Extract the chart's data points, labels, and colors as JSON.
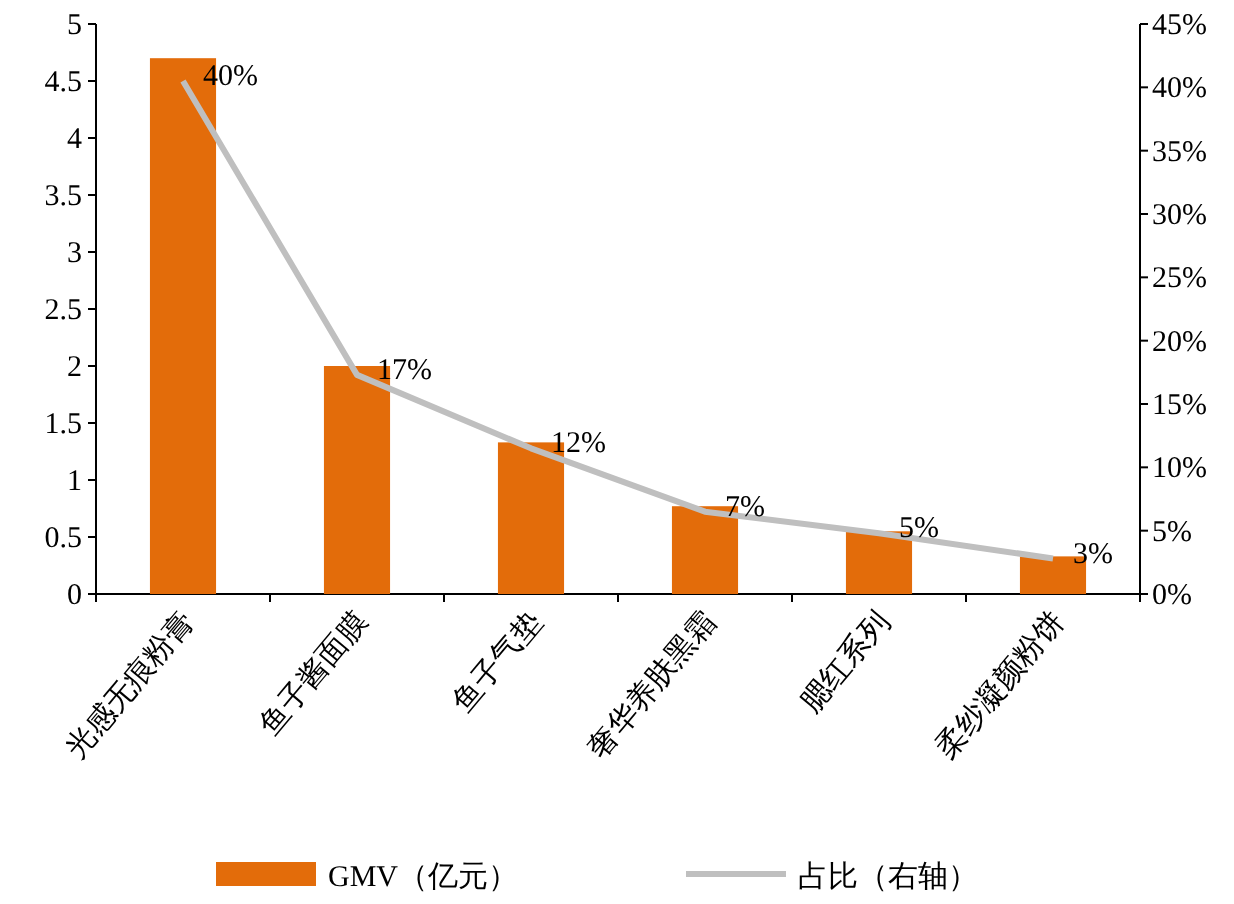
{
  "chart_data": {
    "type": "bar",
    "categories": [
      "光感无痕粉膏",
      "鱼子酱面膜",
      "鱼子气垫",
      "奢华养肤黑霜",
      "腮红系列",
      "柔纱凝颜粉饼"
    ],
    "series": [
      {
        "name": "GMV（亿元）",
        "color": "#e36c0a",
        "values": [
          4.7,
          2.0,
          1.33,
          0.77,
          0.55,
          0.33
        ]
      },
      {
        "name": "占比（右轴）",
        "type": "line",
        "axis": "y2",
        "color": "#bfbfbf",
        "values": [
          40.5,
          17.3,
          11.5,
          6.5,
          4.8,
          2.8
        ],
        "value_labels": [
          "40%",
          "17%",
          "12%",
          "7%",
          "5%",
          "3%"
        ]
      }
    ],
    "ylim": [
      0,
      5
    ],
    "yticks": [
      0,
      0.5,
      1,
      1.5,
      2,
      2.5,
      3,
      3.5,
      4,
      4.5,
      5
    ],
    "y2lim": [
      0,
      45
    ],
    "y2ticks": [
      {
        "value": 0,
        "label": "0%"
      },
      {
        "value": 5,
        "label": "5%"
      },
      {
        "value": 10,
        "label": "10%"
      },
      {
        "value": 15,
        "label": "15%"
      },
      {
        "value": 20,
        "label": "20%"
      },
      {
        "value": 25,
        "label": "25%"
      },
      {
        "value": 30,
        "label": "30%"
      },
      {
        "value": 35,
        "label": "35%"
      },
      {
        "value": 40,
        "label": "40%"
      },
      {
        "value": 45,
        "label": "45%"
      }
    ],
    "grid": false,
    "legend": "bottom",
    "marker": "none",
    "line_style": "solid"
  }
}
